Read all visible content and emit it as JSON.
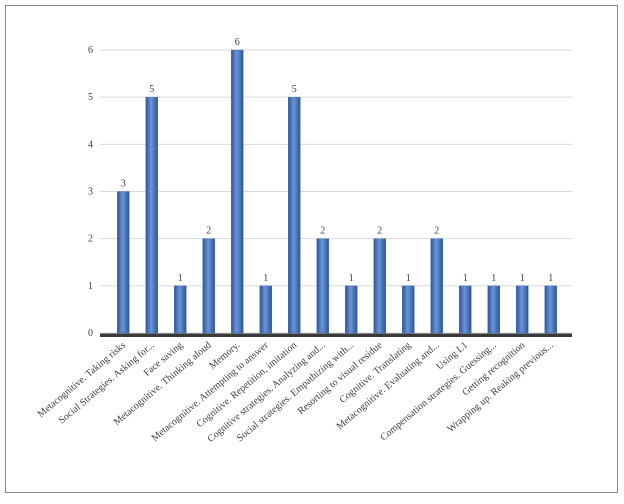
{
  "chart_data": {
    "type": "bar",
    "categories": [
      "Metacognitive. Taking risks",
      "Social Strategies. Asking for...",
      "Face saving",
      "Metacognitive. Thinking aloud",
      "Memory.",
      "Metacognitive. Attempting to answer",
      "Cognitive. Repetition, imitation",
      "Cognitive strategies. Analyzing and...",
      "Social strategies. Empathizing with...",
      "Resorting to visual residue",
      "Cognitive. Translating",
      "Metacognitive. Evaluating and...",
      "Using L1",
      "Compensation strategies. Guessing...",
      "Getting recognition",
      "Wrapping up. Reaking previous..."
    ],
    "values": [
      3,
      5,
      1,
      2,
      6,
      1,
      5,
      2,
      1,
      2,
      1,
      2,
      1,
      1,
      1,
      1
    ],
    "color": "#4a78bd",
    "ylim": [
      0,
      6
    ],
    "yticks": [
      0,
      1,
      2,
      3,
      4,
      5,
      6
    ],
    "grid": true
  }
}
